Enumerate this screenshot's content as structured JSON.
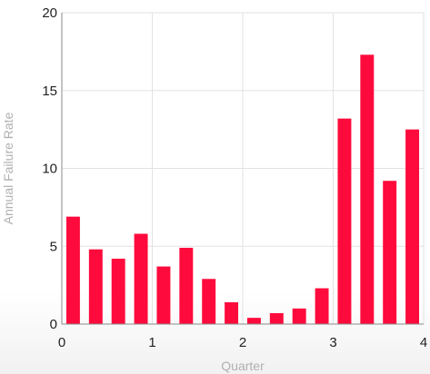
{
  "chart_data": {
    "type": "bar",
    "xlabel": "Quarter",
    "ylabel": "Annual Failure Rate",
    "xlim": [
      0,
      4
    ],
    "ylim": [
      0,
      20
    ],
    "x_ticks": [
      0,
      1,
      2,
      3,
      4
    ],
    "y_ticks": [
      0,
      5,
      10,
      15,
      20
    ],
    "grid": true,
    "bar_color": "#ff0a3c",
    "grid_color": "#e2e2e2",
    "x": [
      0.125,
      0.375,
      0.625,
      0.875,
      1.125,
      1.375,
      1.625,
      1.875,
      2.125,
      2.375,
      2.625,
      2.875,
      3.125,
      3.375,
      3.625,
      3.875
    ],
    "values": [
      6.9,
      4.8,
      4.2,
      5.8,
      3.7,
      4.9,
      2.9,
      1.4,
      0.4,
      0.7,
      1.0,
      2.3,
      13.2,
      17.3,
      9.2,
      12.5
    ]
  }
}
